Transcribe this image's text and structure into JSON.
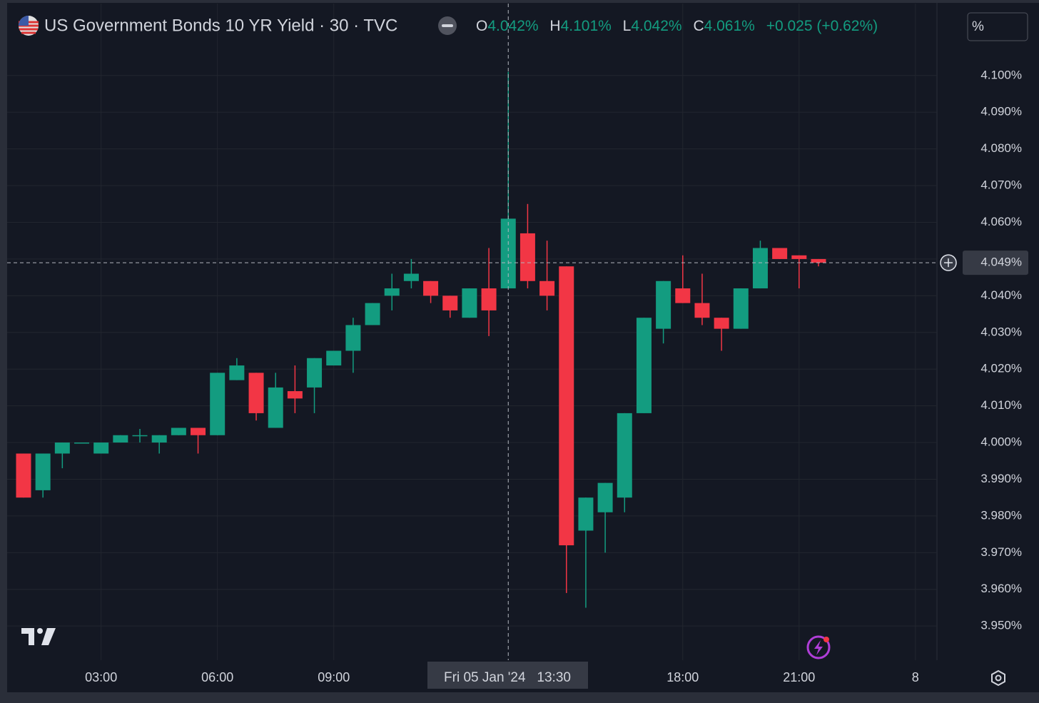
{
  "header": {
    "title": "US Government Bonds 10 YR Yield · 30 · TVC",
    "o_letter": "O",
    "o_value": "4.042%",
    "h_letter": "H",
    "h_value": "4.101%",
    "l_letter": "L",
    "l_value": "4.042%",
    "c_letter": "C",
    "c_value": "4.061%",
    "change": "+0.025 (+0.62%)",
    "unit": "%"
  },
  "chart_data": {
    "type": "candlestick",
    "categories": [
      null,
      null,
      null,
      null,
      "03:00",
      null,
      null,
      null,
      null,
      null,
      "06:00",
      null,
      null,
      null,
      null,
      null,
      "09:00",
      null,
      null,
      null,
      null,
      null,
      null,
      null,
      null,
      null,
      null,
      null,
      null,
      null,
      null,
      null,
      null,
      null,
      "18:00",
      null,
      null,
      null,
      null,
      null,
      "21:00",
      null,
      null,
      null,
      null,
      null,
      "8"
    ],
    "open": [
      3.997,
      3.987,
      3.997,
      4.0,
      3.997,
      4.0,
      4.002,
      4.0,
      4.002,
      4.004,
      4.002,
      4.017,
      4.019,
      4.004,
      4.014,
      4.015,
      4.021,
      4.025,
      4.032,
      4.04,
      4.044,
      4.044,
      4.04,
      4.034,
      4.042,
      4.042,
      4.057,
      4.044,
      4.048,
      3.976,
      3.981,
      3.985,
      4.008,
      4.031,
      4.042,
      4.038,
      4.034,
      4.031,
      4.042,
      4.053,
      4.051,
      4.05,
      null,
      null,
      null,
      null,
      null
    ],
    "high": [
      3.997,
      3.997,
      4.0,
      4.0,
      4.0,
      4.002,
      4.0037,
      4.002,
      4.004,
      4.004,
      4.019,
      4.023,
      4.019,
      4.019,
      4.021,
      4.023,
      4.025,
      4.034,
      4.038,
      4.046,
      4.05,
      4.044,
      4.04,
      4.042,
      4.053,
      4.101,
      4.065,
      4.055,
      4.048,
      3.985,
      3.989,
      4.008,
      4.034,
      4.044,
      4.051,
      4.046,
      4.034,
      4.042,
      4.055,
      4.053,
      4.051,
      4.05,
      null,
      null,
      null,
      null,
      null
    ],
    "low": [
      3.985,
      3.985,
      3.993,
      4.0,
      3.997,
      4.0,
      4.0,
      3.997,
      4.002,
      3.997,
      4.002,
      4.017,
      4.006,
      4.004,
      4.008,
      4.008,
      4.021,
      4.019,
      4.032,
      4.036,
      4.042,
      4.038,
      4.034,
      4.034,
      4.029,
      4.042,
      4.042,
      4.036,
      3.959,
      3.955,
      3.97,
      3.981,
      4.008,
      4.027,
      4.038,
      4.032,
      4.025,
      4.031,
      4.042,
      4.05,
      4.042,
      4.048,
      null,
      null,
      null,
      null,
      null
    ],
    "close": [
      3.985,
      3.997,
      4.0,
      4.0,
      4.0,
      4.002,
      4.002,
      4.002,
      4.004,
      4.002,
      4.019,
      4.021,
      4.008,
      4.015,
      4.012,
      4.023,
      4.025,
      4.032,
      4.038,
      4.042,
      4.046,
      4.04,
      4.036,
      4.042,
      4.036,
      4.061,
      4.044,
      4.04,
      3.972,
      3.985,
      3.989,
      4.008,
      4.034,
      4.044,
      4.038,
      4.034,
      4.031,
      4.042,
      4.053,
      4.05,
      4.05,
      4.049,
      null,
      null,
      null,
      null,
      null
    ],
    "up_color": "#139c80",
    "down_color": "#f23645",
    "ylim": [
      3.9407,
      4.1196
    ],
    "yticks": [
      {
        "value": 3.95,
        "label": "3.950%"
      },
      {
        "value": 3.96,
        "label": "3.960%"
      },
      {
        "value": 3.97,
        "label": "3.970%"
      },
      {
        "value": 3.98,
        "label": "3.980%"
      },
      {
        "value": 3.99,
        "label": "3.990%"
      },
      {
        "value": 4.0,
        "label": "4.000%"
      },
      {
        "value": 4.01,
        "label": "4.010%"
      },
      {
        "value": 4.02,
        "label": "4.020%"
      },
      {
        "value": 4.03,
        "label": "4.030%"
      },
      {
        "value": 4.04,
        "label": "4.040%"
      },
      {
        "value": 4.05,
        "label": "4.050%"
      },
      {
        "value": 4.06,
        "label": "4.060%"
      },
      {
        "value": 4.07,
        "label": "4.070%"
      },
      {
        "value": 4.08,
        "label": "4.080%"
      },
      {
        "value": 4.09,
        "label": "4.090%"
      },
      {
        "value": 4.1,
        "label": "4.100%"
      }
    ],
    "grid": true,
    "crosshair_time": "Fri 05 Jan '24   13:30",
    "crosshair_price": {
      "value": 4.049,
      "label": "4.049%"
    }
  }
}
